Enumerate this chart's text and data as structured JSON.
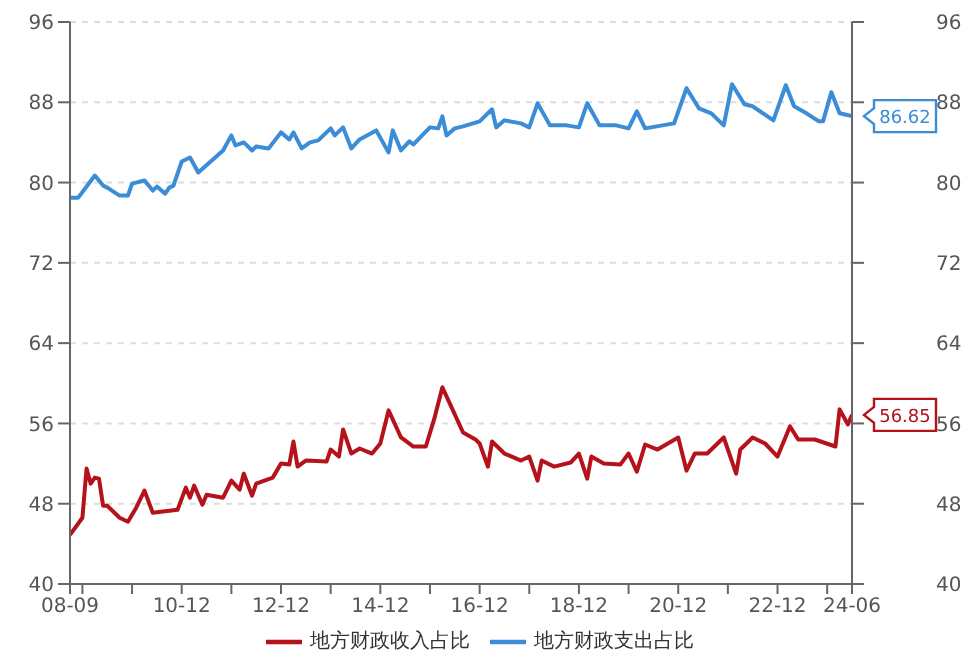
{
  "chart_data": {
    "type": "line",
    "xlim": [
      "2008-09",
      "2024-06"
    ],
    "xticks": [
      {
        "value": "2008-09",
        "label": "08-09"
      },
      {
        "value": "2008-12",
        "label": null
      },
      {
        "value": "2009-12",
        "label": null
      },
      {
        "value": "2010-12",
        "label": "10-12"
      },
      {
        "value": "2011-12",
        "label": null
      },
      {
        "value": "2012-12",
        "label": "12-12"
      },
      {
        "value": "2013-12",
        "label": null
      },
      {
        "value": "2014-12",
        "label": "14-12"
      },
      {
        "value": "2015-12",
        "label": null
      },
      {
        "value": "2016-12",
        "label": "16-12"
      },
      {
        "value": "2017-12",
        "label": null
      },
      {
        "value": "2018-12",
        "label": "18-12"
      },
      {
        "value": "2019-12",
        "label": null
      },
      {
        "value": "2020-12",
        "label": "20-12"
      },
      {
        "value": "2021-12",
        "label": null
      },
      {
        "value": "2022-12",
        "label": "22-12"
      },
      {
        "value": "2023-12",
        "label": null
      },
      {
        "value": "2024-06",
        "label": "24-06"
      }
    ],
    "ylim": [
      40,
      96
    ],
    "yticks": [
      40,
      48,
      56,
      64,
      72,
      80,
      88,
      96
    ],
    "y2lim": [
      40,
      96
    ],
    "y2ticks": [
      40,
      48,
      56,
      64,
      72,
      80,
      88,
      96
    ],
    "grid": "y",
    "legend": "bottom",
    "marker": "none",
    "line_style": "solid",
    "series": [
      {
        "name": "地方财政收入占比",
        "color": "#b5121b",
        "x": [
          "2008-09",
          "2008-12",
          "2009-01",
          "2009-02",
          "2009-03",
          "2009-04",
          "2009-05",
          "2009-06",
          "2009-09",
          "2009-11",
          "2010-01",
          "2010-03",
          "2010-05",
          "2010-11",
          "2011-01",
          "2011-02",
          "2011-03",
          "2011-05",
          "2011-06",
          "2011-10",
          "2011-12",
          "2012-02",
          "2012-03",
          "2012-05",
          "2012-06",
          "2012-10",
          "2012-12",
          "2013-02",
          "2013-03",
          "2013-04",
          "2013-06",
          "2013-11",
          "2013-12",
          "2014-02",
          "2014-03",
          "2014-05",
          "2014-07",
          "2014-10",
          "2014-12",
          "2015-02",
          "2015-05",
          "2015-08",
          "2015-11",
          "2016-01",
          "2016-03",
          "2016-05",
          "2016-08",
          "2016-11",
          "2016-12",
          "2017-02",
          "2017-03",
          "2017-06",
          "2017-10",
          "2017-12",
          "2018-02",
          "2018-03",
          "2018-06",
          "2018-10",
          "2018-12",
          "2019-02",
          "2019-03",
          "2019-06",
          "2019-10",
          "2019-12",
          "2020-02",
          "2020-04",
          "2020-07",
          "2020-12",
          "2021-02",
          "2021-04",
          "2021-07",
          "2021-11",
          "2022-02",
          "2022-03",
          "2022-06",
          "2022-09",
          "2022-12",
          "2023-03",
          "2023-05",
          "2023-09",
          "2024-02",
          "2024-03",
          "2024-05",
          "2024-06"
        ],
        "values": [
          44.9,
          46.6,
          51.5,
          50.0,
          50.6,
          50.5,
          47.8,
          47.8,
          46.6,
          46.2,
          47.6,
          49.3,
          47.1,
          47.4,
          49.6,
          48.6,
          49.8,
          47.9,
          48.9,
          48.6,
          50.3,
          49.4,
          51.0,
          48.8,
          50.0,
          50.6,
          52.0,
          51.9,
          54.2,
          51.7,
          52.3,
          52.2,
          53.4,
          52.7,
          55.4,
          53.0,
          53.5,
          53.0,
          54.0,
          57.3,
          54.6,
          53.7,
          53.7,
          56.4,
          59.6,
          57.8,
          55.1,
          54.4,
          54.0,
          51.7,
          54.2,
          53.0,
          52.3,
          52.7,
          50.3,
          52.3,
          51.7,
          52.1,
          53.0,
          50.5,
          52.7,
          52.0,
          51.9,
          53.0,
          51.2,
          53.9,
          53.4,
          54.6,
          51.3,
          53.0,
          53.0,
          54.6,
          51.0,
          53.4,
          54.6,
          54.0,
          52.7,
          55.7,
          54.4,
          54.4,
          53.7,
          57.4,
          55.9,
          56.85
        ],
        "value_labels": [
          null,
          null,
          null,
          null,
          null,
          null,
          null,
          null,
          null,
          null,
          null,
          null,
          null,
          null,
          null,
          null,
          null,
          null,
          null,
          null,
          null,
          null,
          null,
          null,
          null,
          null,
          null,
          null,
          null,
          null,
          null,
          null,
          null,
          null,
          null,
          null,
          null,
          null,
          null,
          null,
          null,
          null,
          null,
          null,
          null,
          null,
          null,
          null,
          null,
          null,
          null,
          null,
          null,
          null,
          null,
          null,
          null,
          null,
          null,
          null,
          null,
          null,
          null,
          null,
          null,
          null,
          null,
          null,
          null,
          null,
          null,
          null,
          null,
          null,
          null,
          null,
          null,
          null,
          null,
          null,
          null,
          null,
          null,
          "56.85"
        ]
      },
      {
        "name": "地方财政支出占比",
        "color": "#3a8dd6",
        "x": [
          "2008-09",
          "2008-11",
          "2009-03",
          "2009-05",
          "2009-06",
          "2009-09",
          "2009-11",
          "2009-12",
          "2010-03",
          "2010-05",
          "2010-06",
          "2010-08",
          "2010-09",
          "2010-10",
          "2010-12",
          "2011-02",
          "2011-04",
          "2011-10",
          "2011-12",
          "2012-01",
          "2012-03",
          "2012-05",
          "2012-06",
          "2012-09",
          "2012-12",
          "2013-02",
          "2013-03",
          "2013-05",
          "2013-07",
          "2013-09",
          "2013-12",
          "2014-01",
          "2014-03",
          "2014-05",
          "2014-07",
          "2014-11",
          "2015-02",
          "2015-03",
          "2015-05",
          "2015-07",
          "2015-08",
          "2015-12",
          "2016-02",
          "2016-03",
          "2016-04",
          "2016-06",
          "2016-08",
          "2016-12",
          "2017-03",
          "2017-04",
          "2017-06",
          "2017-10",
          "2017-12",
          "2018-02",
          "2018-05",
          "2018-09",
          "2018-12",
          "2019-02",
          "2019-05",
          "2019-09",
          "2019-12",
          "2020-02",
          "2020-04",
          "2020-11",
          "2021-02",
          "2021-05",
          "2021-08",
          "2021-11",
          "2022-01",
          "2022-04",
          "2022-06",
          "2022-11",
          "2023-02",
          "2023-04",
          "2023-07",
          "2023-10",
          "2023-11",
          "2024-01",
          "2024-03",
          "2024-06"
        ],
        "values": [
          78.5,
          78.5,
          80.7,
          79.7,
          79.5,
          78.7,
          78.7,
          79.9,
          80.2,
          79.2,
          79.6,
          78.9,
          79.5,
          79.7,
          82.1,
          82.5,
          81.0,
          83.2,
          84.7,
          83.7,
          84.0,
          83.2,
          83.6,
          83.4,
          85.0,
          84.3,
          85.0,
          83.4,
          84.0,
          84.2,
          85.4,
          84.7,
          85.5,
          83.4,
          84.3,
          85.2,
          83.0,
          85.2,
          83.2,
          84.1,
          83.8,
          85.5,
          85.4,
          86.6,
          84.7,
          85.4,
          85.6,
          86.1,
          87.3,
          85.5,
          86.2,
          85.9,
          85.5,
          87.9,
          85.7,
          85.7,
          85.5,
          87.9,
          85.7,
          85.7,
          85.4,
          87.1,
          85.4,
          85.9,
          89.4,
          87.4,
          86.9,
          85.7,
          89.8,
          87.8,
          87.6,
          86.2,
          89.7,
          87.6,
          86.9,
          86.1,
          86.1,
          89.0,
          86.9,
          86.62
        ],
        "value_labels": [
          null,
          null,
          null,
          null,
          null,
          null,
          null,
          null,
          null,
          null,
          null,
          null,
          null,
          null,
          null,
          null,
          null,
          null,
          null,
          null,
          null,
          null,
          null,
          null,
          null,
          null,
          null,
          null,
          null,
          null,
          null,
          null,
          null,
          null,
          null,
          null,
          null,
          null,
          null,
          null,
          null,
          null,
          null,
          null,
          null,
          null,
          null,
          null,
          null,
          null,
          null,
          null,
          null,
          null,
          null,
          null,
          null,
          null,
          null,
          null,
          null,
          null,
          null,
          null,
          null,
          null,
          null,
          null,
          null,
          null,
          null,
          null,
          null,
          null,
          null,
          null,
          null,
          null,
          null,
          "86.62"
        ]
      }
    ]
  }
}
